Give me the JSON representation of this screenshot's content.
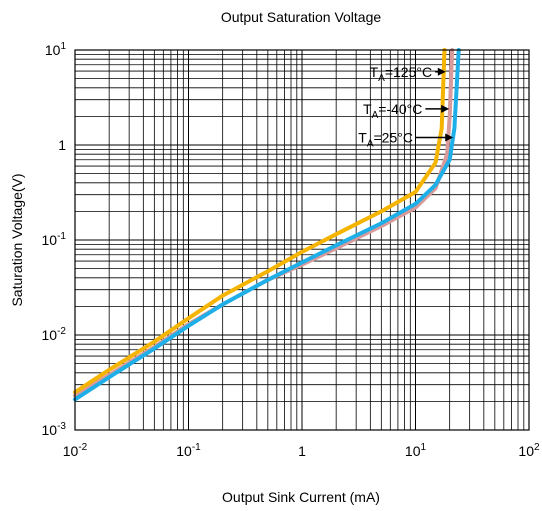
{
  "chart_data": {
    "type": "line",
    "title": "Output Saturation Voltage",
    "xlabel": "Output Sink Current  (mA)",
    "ylabel": "Saturation Voltage(V)",
    "x_scale": "log",
    "y_scale": "log",
    "xlim": [
      0.01,
      100
    ],
    "ylim": [
      0.001,
      10
    ],
    "grid": true,
    "x_ticks": [
      {
        "value": 0.01,
        "base": "10",
        "exp": "-2"
      },
      {
        "value": 0.1,
        "base": "10",
        "exp": "-1"
      },
      {
        "value": 1,
        "base": "1",
        "exp": ""
      },
      {
        "value": 10,
        "base": "10",
        "exp": "1"
      },
      {
        "value": 100,
        "base": "10",
        "exp": "2"
      }
    ],
    "y_ticks": [
      {
        "value": 0.001,
        "base": "10",
        "exp": "-3"
      },
      {
        "value": 0.01,
        "base": "10",
        "exp": "-2"
      },
      {
        "value": 0.1,
        "base": "10",
        "exp": "-1"
      },
      {
        "value": 1,
        "base": "1",
        "exp": ""
      },
      {
        "value": 10,
        "base": "10",
        "exp": "1"
      }
    ],
    "series": [
      {
        "name": "-40°C",
        "label_prefix": "T",
        "label_sub": "A",
        "label_suffix": "=-40°C",
        "color": "#d89a9a",
        "points": [
          [
            0.01,
            0.0023
          ],
          [
            0.02,
            0.0038
          ],
          [
            0.05,
            0.0075
          ],
          [
            0.1,
            0.013
          ],
          [
            0.2,
            0.021
          ],
          [
            0.5,
            0.038
          ],
          [
            1,
            0.055
          ],
          [
            2,
            0.082
          ],
          [
            5,
            0.14
          ],
          [
            10,
            0.22
          ],
          [
            15,
            0.35
          ],
          [
            19,
            0.8
          ],
          [
            20,
            2
          ],
          [
            21,
            10
          ]
        ]
      },
      {
        "name": "125°C",
        "label_prefix": "T",
        "label_sub": "A",
        "label_suffix": "=125°C",
        "color": "#f5b400",
        "points": [
          [
            0.01,
            0.0025
          ],
          [
            0.02,
            0.0043
          ],
          [
            0.05,
            0.0085
          ],
          [
            0.1,
            0.015
          ],
          [
            0.2,
            0.026
          ],
          [
            0.5,
            0.047
          ],
          [
            1,
            0.075
          ],
          [
            2,
            0.115
          ],
          [
            5,
            0.2
          ],
          [
            10,
            0.32
          ],
          [
            15,
            0.65
          ],
          [
            17,
            1.5
          ],
          [
            18,
            10
          ]
        ]
      },
      {
        "name": "25°C",
        "label_prefix": "T",
        "label_sub": "A",
        "label_suffix": "=25°C",
        "color": "#1eaee8",
        "points": [
          [
            0.01,
            0.0021
          ],
          [
            0.02,
            0.0036
          ],
          [
            0.05,
            0.0072
          ],
          [
            0.1,
            0.0125
          ],
          [
            0.2,
            0.021
          ],
          [
            0.5,
            0.038
          ],
          [
            1,
            0.058
          ],
          [
            2,
            0.088
          ],
          [
            5,
            0.15
          ],
          [
            10,
            0.24
          ],
          [
            15,
            0.38
          ],
          [
            20,
            0.7
          ],
          [
            22,
            1.5
          ],
          [
            24,
            10
          ]
        ]
      }
    ],
    "annotations": [
      {
        "series": "125°C",
        "text_prefix": "T",
        "text_sub": "A",
        "text_suffix": "=125°C",
        "text_at": [
          14,
          5.9
        ],
        "arrow_to": [
          18.5,
          5.9
        ]
      },
      {
        "series": "-40°C",
        "text_prefix": "T",
        "text_sub": "A",
        "text_suffix": "=-40°C",
        "text_at": [
          11.5,
          2.4
        ],
        "arrow_to": [
          19.8,
          2.4
        ]
      },
      {
        "series": "25°C",
        "text_prefix": "T",
        "text_sub": "A",
        "text_suffix": "=25°C",
        "text_at": [
          9.5,
          1.2
        ],
        "arrow_to": [
          21.5,
          1.2
        ]
      }
    ]
  }
}
